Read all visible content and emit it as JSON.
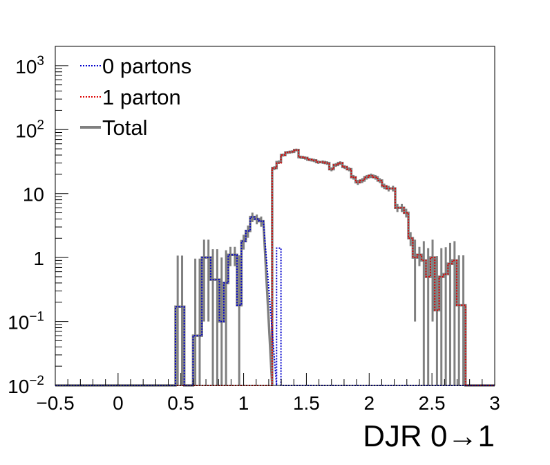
{
  "chart_data": {
    "type": "step-histogram",
    "xlabel": "DJR 0→1",
    "ylabel": "",
    "xlim": [
      -0.5,
      3.0
    ],
    "ylim": [
      0.01,
      2000
    ],
    "yscale": "log",
    "grid": false,
    "legend_position": "top-left",
    "x_tick_labels": [
      "−0.5",
      "0",
      "0.5",
      "1",
      "1.5",
      "2",
      "2.5",
      "3"
    ],
    "x_tick_values": [
      -0.5,
      0,
      0.5,
      1,
      1.5,
      2,
      2.5,
      3
    ],
    "y_tick_labels": [
      {
        "value": 0.01,
        "base": "10",
        "exp": "−2"
      },
      {
        "value": 0.1,
        "base": "10",
        "exp": "−1"
      },
      {
        "value": 1,
        "base": "1",
        "exp": ""
      },
      {
        "value": 10,
        "base": "10",
        "exp": ""
      },
      {
        "value": 100,
        "base": "10",
        "exp": "2"
      },
      {
        "value": 1000,
        "base": "10",
        "exp": "3"
      }
    ],
    "bin_width": 0.035,
    "series": [
      {
        "name": "0 partons",
        "color": "#0000cc",
        "style": "dotted",
        "bins": [
          [
            0.475,
            0.17
          ],
          [
            0.51,
            0.17
          ],
          [
            0.545,
            0.01
          ],
          [
            0.58,
            0.01
          ],
          [
            0.615,
            0.06
          ],
          [
            0.65,
            0.06
          ],
          [
            0.685,
            1.0
          ],
          [
            0.72,
            1.0
          ],
          [
            0.755,
            0.45
          ],
          [
            0.79,
            0.45
          ],
          [
            0.825,
            0.1
          ],
          [
            0.86,
            0.4
          ],
          [
            0.895,
            1.1
          ],
          [
            0.93,
            1.1
          ],
          [
            0.965,
            0.18
          ],
          [
            1.0,
            1.8
          ],
          [
            1.035,
            2.6
          ],
          [
            1.07,
            4.3
          ],
          [
            1.105,
            4.0
          ],
          [
            1.14,
            3.7
          ],
          [
            1.28,
            1.4
          ]
        ]
      },
      {
        "name": "1 parton",
        "color": "#dd0000",
        "style": "dotted",
        "bins": [
          [
            1.245,
            25
          ],
          [
            1.28,
            30
          ],
          [
            1.315,
            40
          ],
          [
            1.35,
            44
          ],
          [
            1.385,
            45
          ],
          [
            1.42,
            48
          ],
          [
            1.455,
            37
          ],
          [
            1.49,
            36
          ],
          [
            1.525,
            34
          ],
          [
            1.56,
            33
          ],
          [
            1.595,
            31
          ],
          [
            1.63,
            31
          ],
          [
            1.665,
            30
          ],
          [
            1.7,
            24
          ],
          [
            1.735,
            28
          ],
          [
            1.77,
            30
          ],
          [
            1.805,
            26
          ],
          [
            1.84,
            24
          ],
          [
            1.875,
            18
          ],
          [
            1.91,
            15
          ],
          [
            1.945,
            16
          ],
          [
            1.98,
            18
          ],
          [
            2.015,
            19
          ],
          [
            2.05,
            18
          ],
          [
            2.085,
            16
          ],
          [
            2.12,
            13
          ],
          [
            2.155,
            12
          ],
          [
            2.19,
            12
          ],
          [
            2.225,
            6
          ],
          [
            2.26,
            6
          ],
          [
            2.295,
            5
          ],
          [
            2.33,
            2.0
          ],
          [
            2.365,
            1.0
          ],
          [
            2.4,
            1.1
          ],
          [
            2.435,
            0.9
          ],
          [
            2.47,
            0.5
          ],
          [
            2.505,
            1.0
          ],
          [
            2.54,
            0.15
          ],
          [
            2.575,
            0.5
          ],
          [
            2.61,
            0.55
          ],
          [
            2.645,
            0.8
          ],
          [
            2.68,
            0.9
          ],
          [
            2.715,
            0.18
          ],
          [
            2.75,
            0.18
          ]
        ]
      },
      {
        "name": "Total",
        "color": "#808080",
        "style": "solid",
        "bins": [
          [
            0.475,
            0.17
          ],
          [
            0.51,
            0.17
          ],
          [
            0.545,
            0.01
          ],
          [
            0.58,
            0.01
          ],
          [
            0.615,
            0.06
          ],
          [
            0.65,
            0.06
          ],
          [
            0.685,
            1.0
          ],
          [
            0.72,
            1.0
          ],
          [
            0.755,
            0.45
          ],
          [
            0.79,
            0.45
          ],
          [
            0.825,
            0.1
          ],
          [
            0.86,
            0.4
          ],
          [
            0.895,
            1.1
          ],
          [
            0.93,
            1.1
          ],
          [
            0.965,
            0.18
          ],
          [
            1.0,
            1.8
          ],
          [
            1.035,
            2.6
          ],
          [
            1.07,
            4.3
          ],
          [
            1.105,
            4.0
          ],
          [
            1.14,
            3.7
          ],
          [
            1.245,
            25
          ],
          [
            1.28,
            31
          ],
          [
            1.315,
            40
          ],
          [
            1.35,
            44
          ],
          [
            1.385,
            45
          ],
          [
            1.42,
            48
          ],
          [
            1.455,
            37
          ],
          [
            1.49,
            36
          ],
          [
            1.525,
            34
          ],
          [
            1.56,
            33
          ],
          [
            1.595,
            31
          ],
          [
            1.63,
            31
          ],
          [
            1.665,
            30
          ],
          [
            1.7,
            24
          ],
          [
            1.735,
            28
          ],
          [
            1.77,
            30
          ],
          [
            1.805,
            26
          ],
          [
            1.84,
            24
          ],
          [
            1.875,
            18
          ],
          [
            1.91,
            15
          ],
          [
            1.945,
            16
          ],
          [
            1.98,
            18
          ],
          [
            2.015,
            19
          ],
          [
            2.05,
            18
          ],
          [
            2.085,
            16
          ],
          [
            2.12,
            13
          ],
          [
            2.155,
            12
          ],
          [
            2.19,
            12
          ],
          [
            2.225,
            6
          ],
          [
            2.26,
            6
          ],
          [
            2.295,
            5
          ],
          [
            2.33,
            2.0
          ],
          [
            2.365,
            1.0
          ],
          [
            2.4,
            1.1
          ],
          [
            2.435,
            0.9
          ],
          [
            2.47,
            0.5
          ],
          [
            2.505,
            1.0
          ],
          [
            2.54,
            0.15
          ],
          [
            2.575,
            0.5
          ],
          [
            2.61,
            0.55
          ],
          [
            2.645,
            0.8
          ],
          [
            2.68,
            0.9
          ],
          [
            2.715,
            0.18
          ],
          [
            2.75,
            0.18
          ]
        ]
      }
    ]
  }
}
